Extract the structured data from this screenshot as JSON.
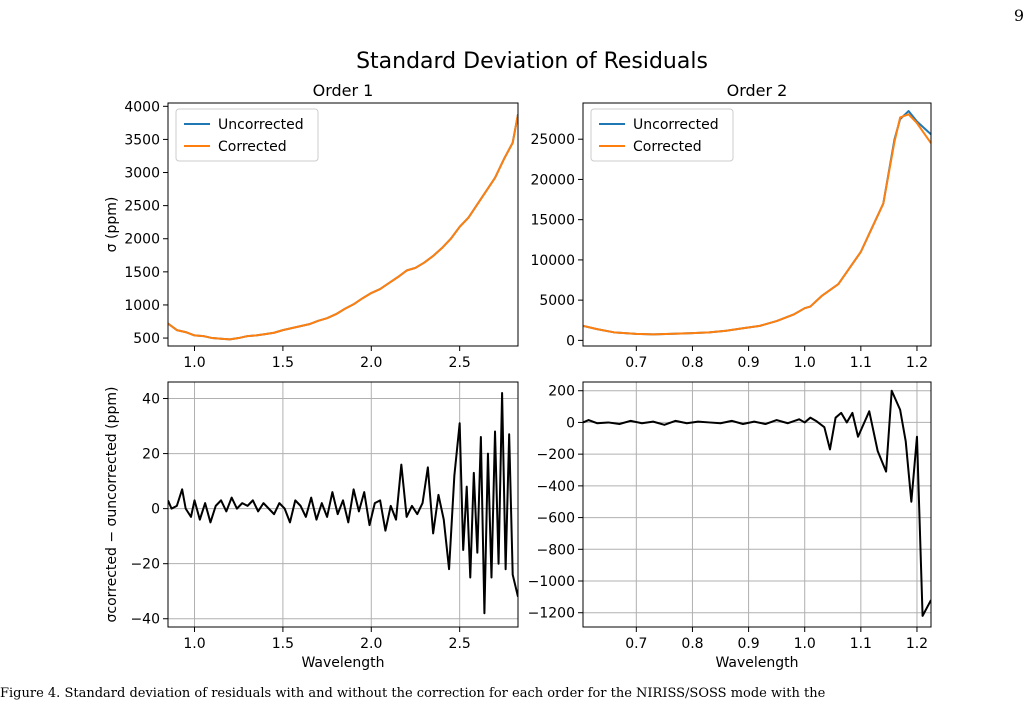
{
  "page": {
    "page_number": "9",
    "caption": "Figure 4. Standard deviation of residuals with and without the correction for each order for the NIRISS/SOSS mode with the"
  },
  "figure": {
    "suptitle": "Standard Deviation of Residuals"
  },
  "chart_data": [
    {
      "id": "order1-sigma",
      "type": "line",
      "title": "Order 1",
      "xlabel": "",
      "ylabel": "σ (ppm)",
      "xlim": [
        0.85,
        2.83
      ],
      "ylim": [
        380,
        4050
      ],
      "xticks": [
        1.0,
        1.5,
        2.0,
        2.5
      ],
      "xtick_labels": [
        "1.0",
        "1.5",
        "2.0",
        "2.5"
      ],
      "yticks": [
        500,
        1000,
        1500,
        2000,
        2500,
        3000,
        3500,
        4000
      ],
      "ytick_labels": [
        "500",
        "1000",
        "1500",
        "2000",
        "2500",
        "3000",
        "3500",
        "4000"
      ],
      "grid": false,
      "legend": "top-left",
      "colors": {
        "Uncorrected": "#1f77b4",
        "Corrected": "#ff7f0e"
      },
      "x": [
        0.85,
        0.9,
        0.95,
        1.0,
        1.05,
        1.1,
        1.15,
        1.2,
        1.25,
        1.3,
        1.35,
        1.4,
        1.45,
        1.5,
        1.55,
        1.6,
        1.65,
        1.7,
        1.75,
        1.8,
        1.85,
        1.9,
        1.95,
        2.0,
        2.05,
        2.1,
        2.15,
        2.2,
        2.25,
        2.3,
        2.35,
        2.4,
        2.45,
        2.5,
        2.55,
        2.6,
        2.65,
        2.7,
        2.75,
        2.8,
        2.83
      ],
      "series": [
        {
          "name": "Uncorrected",
          "values": [
            720,
            620,
            590,
            540,
            530,
            500,
            490,
            480,
            500,
            530,
            540,
            560,
            580,
            620,
            650,
            680,
            710,
            760,
            800,
            860,
            940,
            1010,
            1100,
            1180,
            1240,
            1330,
            1420,
            1520,
            1560,
            1640,
            1740,
            1860,
            2000,
            2180,
            2320,
            2520,
            2720,
            2920,
            3200,
            3450,
            3880
          ]
        },
        {
          "name": "Corrected",
          "values": [
            720,
            620,
            590,
            540,
            530,
            500,
            490,
            480,
            500,
            530,
            540,
            560,
            580,
            620,
            650,
            680,
            710,
            760,
            800,
            860,
            940,
            1010,
            1100,
            1180,
            1240,
            1330,
            1420,
            1520,
            1560,
            1640,
            1740,
            1860,
            2000,
            2180,
            2320,
            2520,
            2720,
            2920,
            3200,
            3450,
            3880
          ]
        }
      ]
    },
    {
      "id": "order2-sigma",
      "type": "line",
      "title": "Order 2",
      "xlabel": "",
      "ylabel": "",
      "xlim": [
        0.605,
        1.225
      ],
      "ylim": [
        -700,
        29500
      ],
      "xticks": [
        0.7,
        0.8,
        0.9,
        1.0,
        1.1,
        1.2
      ],
      "xtick_labels": [
        "0.7",
        "0.8",
        "0.9",
        "1.0",
        "1.1",
        "1.2"
      ],
      "yticks": [
        0,
        5000,
        10000,
        15000,
        20000,
        25000
      ],
      "ytick_labels": [
        "0",
        "5000",
        "10000",
        "15000",
        "20000",
        "25000"
      ],
      "grid": false,
      "legend": "top-left",
      "colors": {
        "Uncorrected": "#1f77b4",
        "Corrected": "#ff7f0e"
      },
      "x": [
        0.605,
        0.63,
        0.66,
        0.7,
        0.73,
        0.76,
        0.8,
        0.83,
        0.86,
        0.89,
        0.92,
        0.95,
        0.98,
        1.0,
        1.01,
        1.03,
        1.06,
        1.08,
        1.1,
        1.12,
        1.14,
        1.16,
        1.17,
        1.185,
        1.2,
        1.225
      ],
      "series": [
        {
          "name": "Uncorrected",
          "values": [
            1800,
            1400,
            1000,
            800,
            750,
            800,
            900,
            1000,
            1200,
            1500,
            1800,
            2400,
            3200,
            4000,
            4200,
            5500,
            7000,
            9000,
            11000,
            14000,
            17000,
            25000,
            27500,
            28500,
            27200,
            25600
          ]
        },
        {
          "name": "Corrected",
          "values": [
            1800,
            1400,
            1000,
            800,
            750,
            800,
            900,
            1000,
            1200,
            1500,
            1800,
            2400,
            3200,
            4000,
            4200,
            5500,
            7000,
            9000,
            11000,
            14000,
            17000,
            24700,
            27700,
            28100,
            27000,
            24500
          ]
        }
      ]
    },
    {
      "id": "order1-diff",
      "type": "line",
      "title": "",
      "xlabel": "Wavelength",
      "ylabel": "σcorrected − σuncorrected (ppm)",
      "xlim": [
        0.85,
        2.83
      ],
      "ylim": [
        -43,
        46
      ],
      "xticks": [
        1.0,
        1.5,
        2.0,
        2.5
      ],
      "xtick_labels": [
        "1.0",
        "1.5",
        "2.0",
        "2.5"
      ],
      "yticks": [
        -40,
        -20,
        0,
        20,
        40
      ],
      "ytick_labels": [
        "−40",
        "−20",
        "0",
        "20",
        "40"
      ],
      "grid": true,
      "legend": "none",
      "colors": {
        "line": "#000000"
      },
      "x": [
        0.85,
        0.87,
        0.9,
        0.93,
        0.95,
        0.98,
        1.0,
        1.03,
        1.06,
        1.09,
        1.12,
        1.15,
        1.18,
        1.21,
        1.24,
        1.27,
        1.3,
        1.33,
        1.36,
        1.39,
        1.42,
        1.45,
        1.48,
        1.51,
        1.54,
        1.57,
        1.6,
        1.63,
        1.66,
        1.69,
        1.72,
        1.75,
        1.78,
        1.81,
        1.84,
        1.87,
        1.9,
        1.93,
        1.96,
        1.99,
        2.02,
        2.05,
        2.08,
        2.11,
        2.14,
        2.17,
        2.2,
        2.23,
        2.26,
        2.29,
        2.32,
        2.35,
        2.38,
        2.41,
        2.44,
        2.47,
        2.5,
        2.52,
        2.54,
        2.56,
        2.58,
        2.6,
        2.62,
        2.64,
        2.66,
        2.68,
        2.7,
        2.72,
        2.74,
        2.76,
        2.78,
        2.8,
        2.83
      ],
      "values": [
        3,
        0,
        1,
        7,
        0,
        -3,
        3,
        -4,
        2,
        -5,
        1,
        3,
        -1,
        4,
        0,
        2,
        1,
        3,
        -1,
        2,
        0,
        -2,
        2,
        0,
        -5,
        3,
        1,
        -3,
        4,
        -4,
        2,
        -3,
        6,
        -2,
        3,
        -5,
        7,
        -1,
        6,
        -6,
        2,
        3,
        -8,
        1,
        -4,
        16,
        -3,
        1,
        -2,
        2,
        15,
        -9,
        5,
        -4,
        -22,
        12,
        31,
        -15,
        8,
        -25,
        13,
        -16,
        26,
        -38,
        20,
        -25,
        28,
        -20,
        42,
        -22,
        27,
        -24,
        -32
      ]
    },
    {
      "id": "order2-diff",
      "type": "line",
      "title": "",
      "xlabel": "Wavelength",
      "ylabel": "",
      "xlim": [
        0.605,
        1.225
      ],
      "ylim": [
        -1290,
        255
      ],
      "xticks": [
        0.7,
        0.8,
        0.9,
        1.0,
        1.1,
        1.2
      ],
      "xtick_labels": [
        "0.7",
        "0.8",
        "0.9",
        "1.0",
        "1.1",
        "1.2"
      ],
      "yticks": [
        200,
        0,
        -200,
        -400,
        -600,
        -800,
        -1000,
        -1200
      ],
      "ytick_labels": [
        "200",
        "0",
        "−200",
        "−400",
        "−600",
        "−800",
        "−1000",
        "−1200"
      ],
      "grid": true,
      "legend": "none",
      "colors": {
        "line": "#000000"
      },
      "x": [
        0.605,
        0.615,
        0.63,
        0.65,
        0.67,
        0.69,
        0.71,
        0.73,
        0.75,
        0.77,
        0.79,
        0.81,
        0.83,
        0.85,
        0.87,
        0.89,
        0.91,
        0.93,
        0.95,
        0.97,
        0.99,
        1.0,
        1.01,
        1.02,
        1.035,
        1.045,
        1.055,
        1.065,
        1.075,
        1.085,
        1.095,
        1.105,
        1.115,
        1.13,
        1.145,
        1.155,
        1.17,
        1.18,
        1.19,
        1.2,
        1.21,
        1.225
      ],
      "values": [
        0,
        15,
        -5,
        0,
        -10,
        10,
        -5,
        5,
        -15,
        10,
        -5,
        5,
        0,
        -5,
        10,
        -10,
        5,
        -10,
        15,
        -5,
        20,
        0,
        30,
        10,
        -30,
        -170,
        30,
        60,
        0,
        60,
        -90,
        -10,
        70,
        -180,
        -310,
        200,
        80,
        -120,
        -500,
        -90,
        -1220,
        -1120
      ]
    }
  ]
}
